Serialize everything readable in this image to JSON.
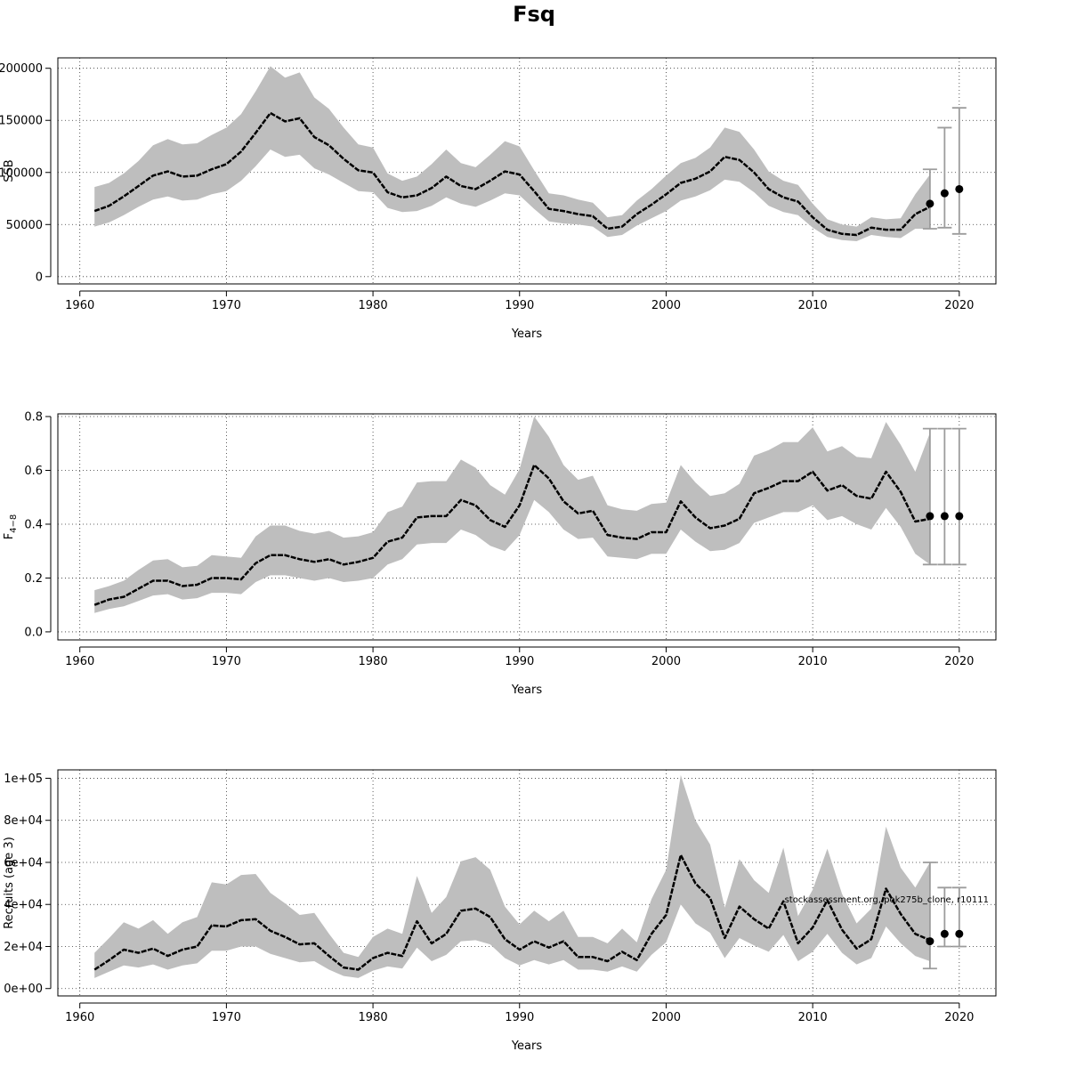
{
  "title": "Fsq",
  "footnote": "stockassessment.org, pok275b_clone, r10111",
  "colors": {
    "band": "#bebebe",
    "line": "#000000",
    "ci": "#9c9c9c"
  },
  "chart_data": [
    {
      "type": "line",
      "name": "ssb-panel",
      "xlabel": "Years",
      "ylabel": "SSB",
      "xlim": [
        1958.5,
        2022.5
      ],
      "ylim": [
        -7000,
        210000
      ],
      "xticks": [
        1960,
        1970,
        1980,
        1990,
        2000,
        2010,
        2020
      ],
      "yticks": [
        0,
        50000,
        100000,
        150000,
        200000
      ],
      "ytick_labels": [
        "0",
        "50000",
        "100000",
        "150000",
        "200000"
      ],
      "grid": true,
      "x": [
        1961,
        1962,
        1963,
        1964,
        1965,
        1966,
        1967,
        1968,
        1969,
        1970,
        1971,
        1972,
        1973,
        1974,
        1975,
        1976,
        1977,
        1978,
        1979,
        1980,
        1981,
        1982,
        1983,
        1984,
        1985,
        1986,
        1987,
        1988,
        1989,
        1990,
        1991,
        1992,
        1993,
        1994,
        1995,
        1996,
        1997,
        1998,
        1999,
        2000,
        2001,
        2002,
        2003,
        2004,
        2005,
        2006,
        2007,
        2008,
        2009,
        2010,
        2011,
        2012,
        2013,
        2014,
        2015,
        2016,
        2017,
        2018
      ],
      "estimate": [
        63000,
        68000,
        77000,
        87000,
        97000,
        101000,
        96000,
        97000,
        103000,
        108000,
        120000,
        138000,
        157000,
        149000,
        152000,
        134000,
        126000,
        113000,
        102000,
        100000,
        81000,
        76000,
        78000,
        85000,
        96000,
        87000,
        84000,
        92000,
        101000,
        98000,
        82000,
        65000,
        63000,
        60000,
        58000,
        46000,
        48000,
        60000,
        69000,
        79000,
        90000,
        94000,
        101000,
        115000,
        112000,
        100000,
        84000,
        76000,
        72000,
        57000,
        45000,
        41000,
        40000,
        47000,
        45000,
        45000,
        60000,
        67000
      ],
      "lower": [
        48000,
        52000,
        59000,
        67000,
        74000,
        77000,
        73000,
        74000,
        79000,
        82000,
        92000,
        106000,
        122000,
        115000,
        117000,
        104000,
        98000,
        90000,
        82000,
        81000,
        66000,
        62000,
        63000,
        68000,
        76000,
        70000,
        67000,
        73000,
        80000,
        78000,
        65000,
        53000,
        51000,
        50000,
        48000,
        38000,
        40000,
        49000,
        56000,
        63000,
        73000,
        77000,
        83000,
        93000,
        91000,
        81000,
        68000,
        62000,
        59000,
        47000,
        38000,
        35000,
        34000,
        40000,
        38000,
        37000,
        46000,
        46000
      ],
      "upper": [
        86000,
        90000,
        99000,
        111000,
        126000,
        132000,
        127000,
        128000,
        136000,
        143000,
        156000,
        178000,
        202000,
        191000,
        196000,
        172000,
        161000,
        143000,
        127000,
        124000,
        99000,
        92000,
        96000,
        108000,
        122000,
        109000,
        105000,
        117000,
        130000,
        125000,
        102000,
        80000,
        78000,
        74000,
        71000,
        57000,
        59000,
        73000,
        84000,
        97000,
        109000,
        114000,
        124000,
        143000,
        139000,
        122000,
        101000,
        92000,
        88000,
        70000,
        55000,
        50000,
        48000,
        57000,
        55000,
        56000,
        79000,
        98000
      ],
      "forecast": [
        {
          "x": 2018,
          "y": 70000,
          "lo": 46000,
          "hi": 103000
        },
        {
          "x": 2019,
          "y": 80000,
          "lo": 47000,
          "hi": 143000
        },
        {
          "x": 2020,
          "y": 84000,
          "lo": 41000,
          "hi": 162000
        }
      ]
    },
    {
      "type": "line",
      "name": "fbar-panel",
      "xlabel": "Years",
      "ylabel": "F",
      "ylabel_sub": "4−8",
      "xlim": [
        1958.5,
        2022.5
      ],
      "ylim": [
        -0.03,
        0.81
      ],
      "xticks": [
        1960,
        1970,
        1980,
        1990,
        2000,
        2010,
        2020
      ],
      "yticks": [
        0.0,
        0.2,
        0.4,
        0.6,
        0.8
      ],
      "ytick_labels": [
        "0.0",
        "0.2",
        "0.4",
        "0.6",
        "0.8"
      ],
      "grid": true,
      "x": [
        1961,
        1962,
        1963,
        1964,
        1965,
        1966,
        1967,
        1968,
        1969,
        1970,
        1971,
        1972,
        1973,
        1974,
        1975,
        1976,
        1977,
        1978,
        1979,
        1980,
        1981,
        1982,
        1983,
        1984,
        1985,
        1986,
        1987,
        1988,
        1989,
        1990,
        1991,
        1992,
        1993,
        1994,
        1995,
        1996,
        1997,
        1998,
        1999,
        2000,
        2001,
        2002,
        2003,
        2004,
        2005,
        2006,
        2007,
        2008,
        2009,
        2010,
        2011,
        2012,
        2013,
        2014,
        2015,
        2016,
        2017,
        2018
      ],
      "estimate": [
        0.1,
        0.12,
        0.13,
        0.16,
        0.19,
        0.19,
        0.17,
        0.175,
        0.2,
        0.2,
        0.195,
        0.255,
        0.285,
        0.285,
        0.27,
        0.26,
        0.27,
        0.25,
        0.26,
        0.275,
        0.335,
        0.35,
        0.425,
        0.43,
        0.43,
        0.49,
        0.47,
        0.415,
        0.39,
        0.47,
        0.62,
        0.57,
        0.485,
        0.44,
        0.45,
        0.36,
        0.35,
        0.345,
        0.37,
        0.37,
        0.485,
        0.425,
        0.385,
        0.395,
        0.42,
        0.515,
        0.535,
        0.56,
        0.56,
        0.595,
        0.525,
        0.545,
        0.505,
        0.495,
        0.595,
        0.52,
        0.41,
        0.42
      ],
      "lower": [
        0.07,
        0.085,
        0.095,
        0.115,
        0.135,
        0.14,
        0.12,
        0.125,
        0.145,
        0.145,
        0.14,
        0.185,
        0.21,
        0.21,
        0.2,
        0.19,
        0.2,
        0.185,
        0.19,
        0.2,
        0.25,
        0.27,
        0.325,
        0.33,
        0.33,
        0.38,
        0.36,
        0.32,
        0.3,
        0.36,
        0.49,
        0.445,
        0.38,
        0.345,
        0.35,
        0.28,
        0.275,
        0.27,
        0.29,
        0.29,
        0.38,
        0.335,
        0.3,
        0.305,
        0.33,
        0.405,
        0.425,
        0.445,
        0.445,
        0.47,
        0.415,
        0.43,
        0.4,
        0.38,
        0.46,
        0.39,
        0.29,
        0.25
      ],
      "upper": [
        0.155,
        0.17,
        0.19,
        0.23,
        0.265,
        0.27,
        0.24,
        0.245,
        0.285,
        0.28,
        0.275,
        0.355,
        0.395,
        0.395,
        0.375,
        0.365,
        0.375,
        0.35,
        0.355,
        0.37,
        0.445,
        0.465,
        0.555,
        0.56,
        0.56,
        0.64,
        0.61,
        0.545,
        0.51,
        0.605,
        0.8,
        0.725,
        0.62,
        0.565,
        0.58,
        0.47,
        0.455,
        0.45,
        0.475,
        0.48,
        0.62,
        0.555,
        0.505,
        0.515,
        0.55,
        0.655,
        0.675,
        0.705,
        0.705,
        0.76,
        0.67,
        0.69,
        0.65,
        0.645,
        0.78,
        0.695,
        0.595,
        0.74
      ],
      "forecast": [
        {
          "x": 2018,
          "y": 0.43,
          "lo": 0.25,
          "hi": 0.755
        },
        {
          "x": 2019,
          "y": 0.43,
          "lo": 0.25,
          "hi": 0.755
        },
        {
          "x": 2020,
          "y": 0.43,
          "lo": 0.25,
          "hi": 0.755
        }
      ]
    },
    {
      "type": "line",
      "name": "recruits-panel",
      "xlabel": "Years",
      "ylabel": "Recruits (age 3)",
      "xlim": [
        1958.5,
        2022.5
      ],
      "ylim": [
        -3500,
        104000
      ],
      "xticks": [
        1960,
        1970,
        1980,
        1990,
        2000,
        2010,
        2020
      ],
      "yticks": [
        0,
        20000,
        40000,
        60000,
        80000,
        100000
      ],
      "ytick_labels": [
        "0e+00",
        "2e+04",
        "4e+04",
        "6e+04",
        "8e+04",
        "1e+05"
      ],
      "grid": true,
      "x": [
        1961,
        1962,
        1963,
        1964,
        1965,
        1966,
        1967,
        1968,
        1969,
        1970,
        1971,
        1972,
        1973,
        1974,
        1975,
        1976,
        1977,
        1978,
        1979,
        1980,
        1981,
        1982,
        1983,
        1984,
        1985,
        1986,
        1987,
        1988,
        1989,
        1990,
        1991,
        1992,
        1993,
        1994,
        1995,
        1996,
        1997,
        1998,
        1999,
        2000,
        2001,
        2002,
        2003,
        2004,
        2005,
        2006,
        2007,
        2008,
        2009,
        2010,
        2011,
        2012,
        2013,
        2014,
        2015,
        2016,
        2017,
        2018
      ],
      "estimate": [
        9000,
        13500,
        18500,
        17000,
        19000,
        15500,
        18500,
        20000,
        30000,
        29500,
        32500,
        33000,
        27500,
        24500,
        21000,
        21500,
        15500,
        10000,
        9000,
        14500,
        17000,
        15500,
        32000,
        21500,
        26000,
        37000,
        38000,
        34000,
        23500,
        18500,
        22500,
        19500,
        22500,
        15000,
        15000,
        13000,
        17500,
        13500,
        26000,
        35000,
        63500,
        50000,
        43000,
        24000,
        39000,
        33000,
        28500,
        41500,
        21500,
        29000,
        42000,
        28000,
        19000,
        23500,
        47500,
        35500,
        26000,
        23000
      ],
      "lower": [
        5000,
        8000,
        11000,
        10000,
        11500,
        9000,
        11000,
        12000,
        18000,
        18000,
        20000,
        20000,
        16500,
        14500,
        12500,
        13000,
        9000,
        6000,
        5000,
        8500,
        10500,
        9500,
        19500,
        13000,
        16000,
        22500,
        23000,
        21000,
        14500,
        11000,
        13500,
        11500,
        13500,
        9000,
        9000,
        8000,
        10500,
        8000,
        16000,
        22000,
        40000,
        31000,
        26500,
        14500,
        24000,
        20500,
        17500,
        25500,
        13000,
        17500,
        26000,
        17000,
        11500,
        14500,
        29500,
        21500,
        15500,
        13000
      ],
      "upper": [
        17000,
        24000,
        31500,
        28500,
        32500,
        26000,
        31500,
        34000,
        50500,
        49500,
        54000,
        54500,
        45500,
        40500,
        35000,
        36000,
        26000,
        17000,
        15000,
        24500,
        28500,
        26000,
        53500,
        36000,
        43500,
        60500,
        62500,
        56500,
        39000,
        30500,
        37000,
        32000,
        37000,
        24500,
        24500,
        21500,
        28500,
        22000,
        42500,
        56500,
        101500,
        80000,
        68500,
        38500,
        61500,
        51500,
        45500,
        67000,
        34500,
        47000,
        66500,
        45000,
        31000,
        38000,
        77000,
        57500,
        48000,
        60000
      ],
      "forecast": [
        {
          "x": 2018,
          "y": 22500,
          "lo": 9500,
          "hi": 60000
        },
        {
          "x": 2019,
          "y": 26000,
          "lo": 20000,
          "hi": 48000
        },
        {
          "x": 2020,
          "y": 26000,
          "lo": 20000,
          "hi": 48000
        }
      ]
    }
  ]
}
